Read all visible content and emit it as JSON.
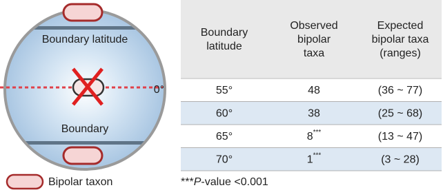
{
  "diagram": {
    "top_label": "Boundary latitude",
    "equator_label": "0°",
    "bottom_label": "Boundary",
    "legend": "Bipolar taxon"
  },
  "table": {
    "header": [
      [
        "Boundary",
        "latitude"
      ],
      [
        "Observed",
        "bipolar",
        "taxa"
      ],
      [
        "Expected",
        "bipolar taxa",
        "(ranges)"
      ]
    ],
    "rows": [
      [
        {
          "text": "55°"
        },
        {
          "text": "48"
        },
        {
          "text": "(36 ~ 77)"
        }
      ],
      [
        {
          "text": "60°"
        },
        {
          "text": "38"
        },
        {
          "text": "(25 ~ 68)"
        }
      ],
      [
        {
          "text": "65°"
        },
        {
          "text": "8",
          "sup": "***"
        },
        {
          "text": "(13 ~ 47)"
        }
      ],
      [
        {
          "text": "70°"
        },
        {
          "text": "1",
          "sup": "***"
        },
        {
          "text": "(3 ~ 28)"
        }
      ]
    ],
    "footnote": {
      "prefix": "***",
      "italic": "P",
      "text": "-value <0.001"
    }
  }
}
